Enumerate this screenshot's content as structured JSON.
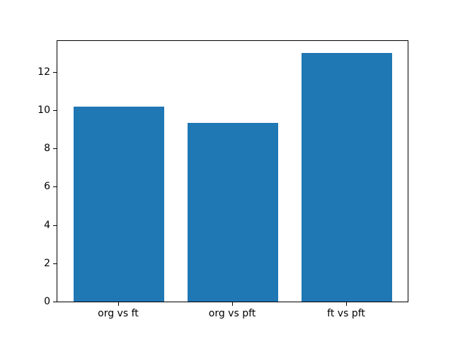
{
  "figure": {
    "background": "#ffffff",
    "axes_background": "#ffffff",
    "spine_color": "#000000",
    "tick_color": "#000000",
    "text_color": "#000000"
  },
  "chart_data": {
    "type": "bar",
    "categories": [
      "org vs ft",
      "org vs pft",
      "ft vs pft"
    ],
    "values": [
      10.2,
      9.35,
      13.0
    ],
    "title": "",
    "xlabel": "",
    "ylabel": "",
    "ylim": [
      0,
      13.65
    ],
    "yticks": [
      0,
      2,
      4,
      6,
      8,
      10,
      12
    ],
    "xlim": [
      -0.54,
      2.54
    ],
    "bar_width": 0.8,
    "bar_color": "#1f77b4",
    "grid": "off",
    "legend": "none"
  }
}
